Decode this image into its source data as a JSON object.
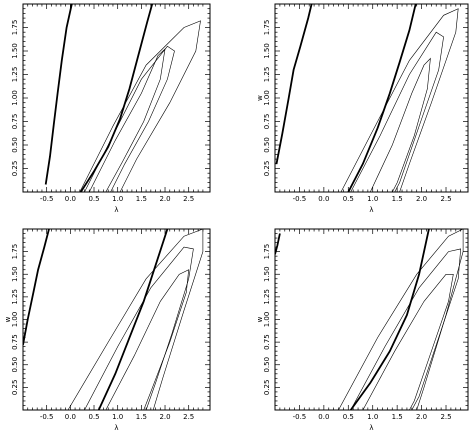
{
  "chart_data": [
    {
      "type": "line",
      "xlabel": "λ",
      "ylabel": "",
      "xlim": [
        -1.0,
        2.95
      ],
      "ylim": [
        0.0,
        2.0
      ],
      "xticks": [
        "-0.5",
        "0.0",
        "0.5",
        "1.0",
        "1.5",
        "2.0",
        "2.5"
      ],
      "yticks": [
        "0.25",
        "0.50",
        "0.75",
        "1.00",
        "1.25",
        "1.50",
        "1.75"
      ],
      "thick_lines": [
        [
          [
            -0.52,
            0.08
          ],
          [
            -0.43,
            0.38
          ],
          [
            -0.35,
            0.72
          ],
          [
            -0.27,
            1.05
          ],
          [
            -0.18,
            1.4
          ],
          [
            -0.08,
            1.75
          ],
          [
            0.03,
            2.0
          ]
        ],
        [
          [
            0.22,
            0.0
          ],
          [
            0.5,
            0.22
          ],
          [
            0.8,
            0.48
          ],
          [
            1.05,
            0.78
          ],
          [
            1.25,
            1.1
          ],
          [
            1.45,
            1.48
          ],
          [
            1.62,
            1.8
          ],
          [
            1.73,
            2.0
          ]
        ]
      ],
      "contours": [
        [
          [
            0.4,
            0.0
          ],
          [
            0.95,
            0.55
          ],
          [
            1.5,
            1.05
          ],
          [
            1.85,
            1.45
          ],
          [
            2.0,
            1.52
          ],
          [
            1.9,
            1.2
          ],
          [
            1.55,
            0.75
          ],
          [
            1.1,
            0.32
          ],
          [
            0.75,
            0.0
          ]
        ],
        [
          [
            0.3,
            0.0
          ],
          [
            0.9,
            0.6
          ],
          [
            1.5,
            1.2
          ],
          [
            2.05,
            1.55
          ],
          [
            2.2,
            1.5
          ],
          [
            2.05,
            1.2
          ],
          [
            1.65,
            0.75
          ],
          [
            1.15,
            0.3
          ],
          [
            0.85,
            0.0
          ]
        ],
        [
          [
            0.2,
            0.0
          ],
          [
            0.9,
            0.7
          ],
          [
            1.6,
            1.35
          ],
          [
            2.4,
            1.75
          ],
          [
            2.75,
            1.82
          ],
          [
            2.65,
            1.5
          ],
          [
            2.1,
            0.95
          ],
          [
            1.4,
            0.35
          ],
          [
            1.05,
            0.0
          ]
        ]
      ]
    },
    {
      "type": "line",
      "xlabel": "λ",
      "ylabel": "w",
      "xlim": [
        -1.0,
        2.95
      ],
      "ylim": [
        0.0,
        2.0
      ],
      "xticks": [
        "-0.5",
        "0.0",
        "0.5",
        "1.0",
        "1.5",
        "2.0",
        "2.5"
      ],
      "yticks": [
        "0.25",
        "0.50",
        "0.75",
        "1.00",
        "1.25",
        "1.50",
        "1.75"
      ],
      "thick_lines": [
        [
          [
            -0.97,
            0.3
          ],
          [
            -0.85,
            0.62
          ],
          [
            -0.72,
            1.0
          ],
          [
            -0.62,
            1.3
          ],
          [
            -0.48,
            1.55
          ],
          [
            -0.32,
            1.85
          ],
          [
            -0.25,
            2.0
          ]
        ],
        [
          [
            0.5,
            0.0
          ],
          [
            0.8,
            0.3
          ],
          [
            1.1,
            0.68
          ],
          [
            1.35,
            1.05
          ],
          [
            1.55,
            1.38
          ],
          [
            1.75,
            1.72
          ],
          [
            1.88,
            2.0
          ]
        ]
      ],
      "contours": [
        [
          [
            0.95,
            0.0
          ],
          [
            1.4,
            0.5
          ],
          [
            1.8,
            1.05
          ],
          [
            2.05,
            1.35
          ],
          [
            2.18,
            1.42
          ],
          [
            2.12,
            1.1
          ],
          [
            1.85,
            0.6
          ],
          [
            1.5,
            0.1
          ],
          [
            1.4,
            0.0
          ]
        ],
        [
          [
            0.55,
            0.0
          ],
          [
            1.15,
            0.6
          ],
          [
            1.75,
            1.25
          ],
          [
            2.3,
            1.7
          ],
          [
            2.45,
            1.65
          ],
          [
            2.35,
            1.3
          ],
          [
            1.95,
            0.7
          ],
          [
            1.55,
            0.1
          ],
          [
            1.45,
            0.0
          ]
        ],
        [
          [
            0.35,
            0.0
          ],
          [
            1.0,
            0.65
          ],
          [
            1.75,
            1.4
          ],
          [
            2.45,
            1.88
          ],
          [
            2.75,
            1.95
          ],
          [
            2.7,
            1.7
          ],
          [
            2.2,
            0.95
          ],
          [
            1.75,
            0.3
          ],
          [
            1.55,
            0.0
          ]
        ]
      ]
    },
    {
      "type": "line",
      "xlabel": "λ",
      "ylabel": "w",
      "xlim": [
        -1.0,
        2.95
      ],
      "ylim": [
        0.0,
        2.0
      ],
      "xticks": [
        "-0.5",
        "0.0",
        "0.5",
        "1.0",
        "1.5",
        "2.0",
        "2.5"
      ],
      "yticks": [
        "0.25",
        "0.50",
        "0.75",
        "1.00",
        "1.25",
        "1.50",
        "1.75"
      ],
      "thick_lines": [
        [
          [
            -1.0,
            0.72
          ],
          [
            -0.9,
            1.0
          ],
          [
            -0.78,
            1.3
          ],
          [
            -0.68,
            1.55
          ],
          [
            -0.55,
            1.8
          ],
          [
            -0.45,
            2.0
          ]
        ],
        [
          [
            0.6,
            0.0
          ],
          [
            0.95,
            0.4
          ],
          [
            1.25,
            0.8
          ],
          [
            1.55,
            1.2
          ],
          [
            1.8,
            1.6
          ],
          [
            2.05,
            2.0
          ]
        ]
      ],
      "contours": [
        [
          [
            0.75,
            0.0
          ],
          [
            1.35,
            0.6
          ],
          [
            1.9,
            1.2
          ],
          [
            2.3,
            1.5
          ],
          [
            2.5,
            1.55
          ],
          [
            2.45,
            1.3
          ],
          [
            2.1,
            0.75
          ],
          [
            1.7,
            0.2
          ],
          [
            1.55,
            0.0
          ]
        ],
        [
          [
            0.3,
            0.0
          ],
          [
            1.0,
            0.7
          ],
          [
            1.7,
            1.35
          ],
          [
            2.4,
            1.8
          ],
          [
            2.6,
            1.78
          ],
          [
            2.5,
            1.45
          ],
          [
            2.15,
            0.85
          ],
          [
            1.8,
            0.3
          ],
          [
            1.6,
            0.0
          ]
        ],
        [
          [
            -0.05,
            0.0
          ],
          [
            0.8,
            0.75
          ],
          [
            1.6,
            1.45
          ],
          [
            2.4,
            1.92
          ],
          [
            2.8,
            2.0
          ],
          [
            2.8,
            1.75
          ],
          [
            2.4,
            1.1
          ],
          [
            1.95,
            0.35
          ],
          [
            1.75,
            0.0
          ]
        ]
      ]
    },
    {
      "type": "line",
      "xlabel": "λ",
      "ylabel": "w",
      "xlim": [
        -1.0,
        2.95
      ],
      "ylim": [
        0.0,
        2.0
      ],
      "xticks": [
        "-0.5",
        "0.0",
        "0.5",
        "1.0",
        "1.5",
        "2.0",
        "2.5"
      ],
      "yticks": [
        "0.25",
        "0.50",
        "0.75",
        "1.00",
        "1.25",
        "1.50",
        "1.75"
      ],
      "thick_lines": [
        [
          [
            -1.0,
            1.72
          ],
          [
            -0.95,
            1.82
          ],
          [
            -0.9,
            1.95
          ]
        ],
        [
          [
            0.55,
            0.0
          ],
          [
            0.95,
            0.3
          ],
          [
            1.35,
            0.65
          ],
          [
            1.7,
            1.05
          ],
          [
            1.95,
            1.5
          ],
          [
            2.15,
            2.0
          ]
        ]
      ],
      "contours": [
        [
          [
            0.8,
            0.0
          ],
          [
            1.45,
            0.65
          ],
          [
            2.05,
            1.2
          ],
          [
            2.5,
            1.5
          ],
          [
            2.65,
            1.5
          ],
          [
            2.55,
            1.2
          ],
          [
            2.2,
            0.65
          ],
          [
            1.85,
            0.1
          ],
          [
            1.75,
            0.0
          ]
        ],
        [
          [
            0.55,
            0.0
          ],
          [
            1.25,
            0.7
          ],
          [
            1.95,
            1.35
          ],
          [
            2.55,
            1.75
          ],
          [
            2.8,
            1.78
          ],
          [
            2.75,
            1.45
          ],
          [
            2.35,
            0.8
          ],
          [
            1.95,
            0.15
          ],
          [
            1.8,
            0.0
          ]
        ],
        [
          [
            0.3,
            0.0
          ],
          [
            1.1,
            0.8
          ],
          [
            1.9,
            1.5
          ],
          [
            2.55,
            1.92
          ],
          [
            2.85,
            2.0
          ],
          [
            2.85,
            1.75
          ],
          [
            2.5,
            1.05
          ],
          [
            2.05,
            0.25
          ],
          [
            1.9,
            0.0
          ]
        ]
      ]
    }
  ]
}
